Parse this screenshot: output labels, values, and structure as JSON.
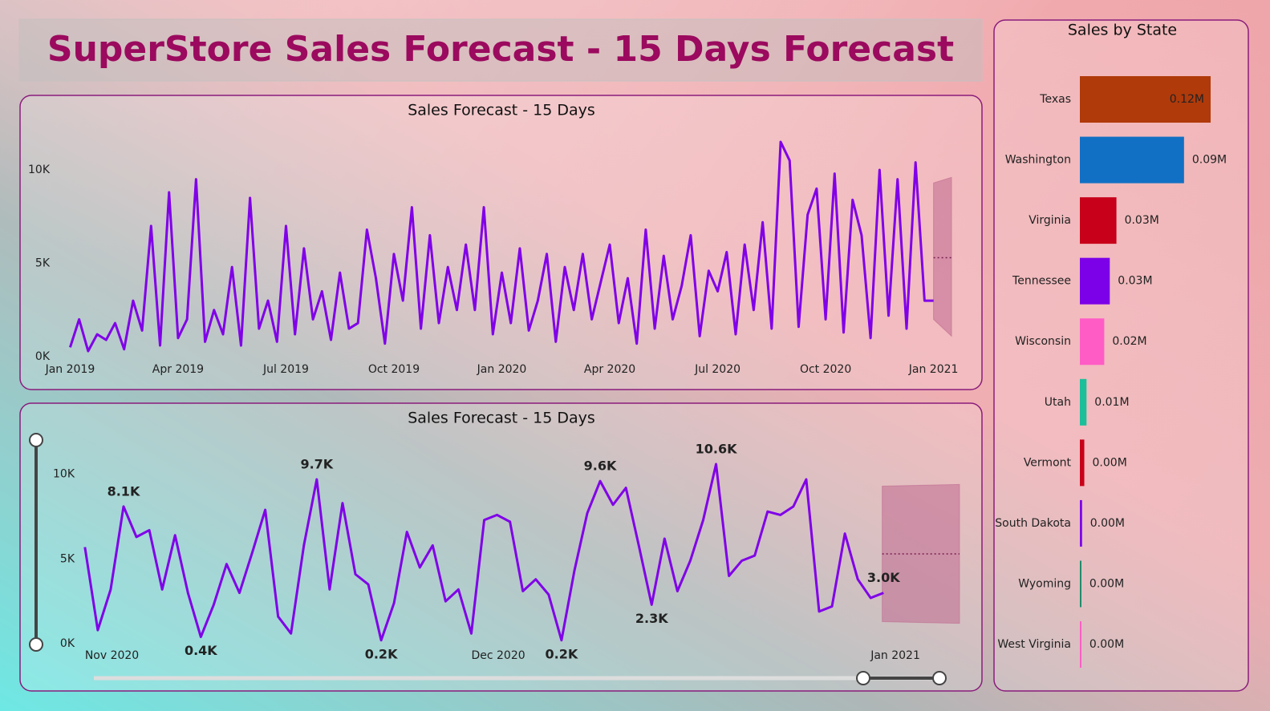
{
  "title": "SuperStore Sales Forecast - 15 Days Forecast",
  "chart_data": [
    {
      "type": "line",
      "title": "Sales Forecast - 15 Days",
      "color": "#8000e8",
      "x": [
        0,
        0.25,
        0.5,
        0.75,
        1,
        1.25,
        1.5,
        1.75,
        2,
        2.25,
        2.5,
        2.75,
        3,
        3.25,
        3.5,
        3.75,
        4,
        4.25,
        4.5,
        4.75,
        5,
        5.25,
        5.5,
        5.75,
        6,
        6.25,
        6.5,
        6.75,
        7,
        7.25,
        7.5,
        7.75,
        8,
        8.25,
        8.5,
        8.75,
        9,
        9.25,
        9.5,
        9.75,
        10,
        10.25,
        10.5,
        10.75,
        11,
        11.25,
        11.5,
        11.75,
        12,
        12.25,
        12.5,
        12.75,
        13,
        13.25,
        13.5,
        13.75,
        14,
        14.25,
        14.5,
        14.75,
        15,
        15.25,
        15.5,
        15.75,
        16,
        16.25,
        16.5,
        16.75,
        17,
        17.25,
        17.5,
        17.75,
        18,
        18.25,
        18.5,
        18.75,
        19,
        19.25,
        19.5,
        19.75,
        20,
        20.25,
        20.5,
        20.75,
        21,
        21.25,
        21.5,
        21.75,
        22,
        22.25,
        22.5,
        22.75,
        23,
        23.25,
        23.5,
        23.75,
        24
      ],
      "values": [
        500,
        2000,
        300,
        1200,
        900,
        1800,
        400,
        3000,
        1400,
        7000,
        600,
        8800,
        1000,
        2000,
        9500,
        800,
        2500,
        1200,
        4800,
        600,
        8500,
        1500,
        3000,
        800,
        7000,
        1200,
        5800,
        2000,
        3500,
        900,
        4500,
        1500,
        1800,
        6800,
        4200,
        700,
        5500,
        3000,
        8000,
        1500,
        6500,
        1800,
        4800,
        2500,
        6000,
        2500,
        8000,
        1200,
        4500,
        1800,
        5800,
        1400,
        3000,
        5500,
        800,
        4800,
        2500,
        5500,
        2000,
        4000,
        6000,
        1800,
        4200,
        700,
        6800,
        1500,
        5400,
        2000,
        3800,
        6500,
        1100,
        4600,
        3500,
        5600,
        1200,
        6000,
        2500,
        7200,
        1500,
        11500,
        10500,
        1600,
        7600,
        9000,
        2000,
        9800,
        1300,
        8400,
        6500,
        1000,
        10000,
        2200,
        9500,
        1500,
        10400,
        3000,
        3000
      ],
      "forecast": {
        "x": [
          24,
          24.5
        ],
        "values": [
          5300,
          5300
        ],
        "lower": [
          2000,
          1100
        ],
        "upper": [
          9300,
          9600
        ],
        "color": "#c06a90"
      },
      "xlim": [
        -0.5,
        24.7
      ],
      "xticks": [
        {
          "value": 0,
          "label": "Jan 2019"
        },
        {
          "value": 3,
          "label": "Apr 2019"
        },
        {
          "value": 6,
          "label": "Jul 2019"
        },
        {
          "value": 9,
          "label": "Oct 2019"
        },
        {
          "value": 12,
          "label": "Jan 2020"
        },
        {
          "value": 15,
          "label": "Apr 2020"
        },
        {
          "value": 18,
          "label": "Jul 2020"
        },
        {
          "value": 21,
          "label": "Oct 2020"
        },
        {
          "value": 24,
          "label": "Jan 2021"
        }
      ],
      "ylim": [
        0,
        11800
      ],
      "yticks": [
        {
          "value": 0,
          "label": "0K"
        },
        {
          "value": 5000,
          "label": "5K"
        },
        {
          "value": 10000,
          "label": "10K"
        }
      ]
    },
    {
      "type": "line",
      "title": "Sales Forecast - 15 Days",
      "color": "#8000e8",
      "x": [
        0,
        1,
        2,
        3,
        4,
        5,
        6,
        7,
        8,
        9,
        10,
        11,
        12,
        13,
        14,
        15,
        16,
        17,
        18,
        19,
        20,
        21,
        22,
        23,
        24,
        25,
        26,
        27,
        28,
        29,
        30,
        31,
        32,
        33,
        34,
        35,
        36,
        37,
        38,
        39,
        40,
        41,
        42,
        43,
        44,
        45,
        46,
        47,
        48,
        49,
        50,
        51,
        52,
        53,
        54,
        55,
        56,
        57,
        58,
        59,
        60,
        61,
        62
      ],
      "values": [
        5700,
        800,
        3200,
        8100,
        6300,
        6700,
        3200,
        6400,
        3000,
        400,
        2300,
        4700,
        3000,
        5400,
        7900,
        1600,
        600,
        5800,
        9700,
        3200,
        8300,
        4100,
        3500,
        200,
        2400,
        6600,
        4500,
        5800,
        2500,
        3200,
        600,
        7300,
        7600,
        7200,
        3100,
        3800,
        2900,
        200,
        4300,
        7700,
        9600,
        8200,
        9200,
        5800,
        2300,
        6200,
        3100,
        4900,
        7300,
        10600,
        4000,
        4900,
        5200,
        7800,
        7600,
        8100,
        9700,
        1900,
        2200,
        6500,
        3800,
        2700,
        3000
      ],
      "value_labels": [
        null,
        null,
        null,
        "8.1K",
        null,
        null,
        null,
        null,
        null,
        "0.4K",
        null,
        null,
        null,
        null,
        null,
        null,
        null,
        null,
        "9.7K",
        null,
        null,
        null,
        null,
        "0.2K",
        null,
        null,
        null,
        null,
        null,
        null,
        null,
        null,
        null,
        null,
        null,
        null,
        null,
        "0.2K",
        null,
        null,
        "9.6K",
        null,
        null,
        null,
        "2.3K",
        null,
        null,
        null,
        null,
        "10.6K",
        null,
        null,
        null,
        null,
        null,
        null,
        null,
        null,
        null,
        null,
        null,
        null,
        "3.0K"
      ],
      "forecast": {
        "x": [
          61.9,
          67.9
        ],
        "values": [
          5300,
          5300
        ],
        "lower": [
          1300,
          1200
        ],
        "upper": [
          9300,
          9400
        ],
        "color": "#c06a90"
      },
      "xlim": [
        -0.3,
        67.9
      ],
      "xticks": [
        {
          "value": 0,
          "label": "Nov 2020"
        },
        {
          "value": 30,
          "label": "Dec 2020"
        },
        {
          "value": 61,
          "label": "Jan 2021"
        }
      ],
      "ylim": [
        0,
        11500
      ],
      "yticks": [
        {
          "value": 0,
          "label": "0K"
        },
        {
          "value": 5000,
          "label": "5K"
        },
        {
          "value": 10000,
          "label": "10K"
        }
      ]
    },
    {
      "type": "hbar",
      "title": "Sales by State",
      "categories": [
        "Texas",
        "Washington",
        "Virginia",
        "Tennessee",
        "Wisconsin",
        "Utah",
        "Vermont",
        "South Dakota",
        "Wyoming",
        "West Virginia"
      ],
      "values": [
        0.118,
        0.094,
        0.033,
        0.027,
        0.022,
        0.006,
        0.004,
        0.002,
        0.0014,
        0.0014
      ],
      "value_labels": [
        "0.12M",
        "0.09M",
        "0.03M",
        "0.03M",
        "0.02M",
        "0.01M",
        "0.00M",
        "0.00M",
        "0.00M",
        "0.00M"
      ],
      "colors": [
        "#b03a0a",
        "#1170c4",
        "#c8001a",
        "#7c00e8",
        "#ff5cc6",
        "#1bbf9a",
        "#c8001a",
        "#7c00e8",
        "#1a8a6a",
        "#ff5cc6"
      ]
    }
  ]
}
